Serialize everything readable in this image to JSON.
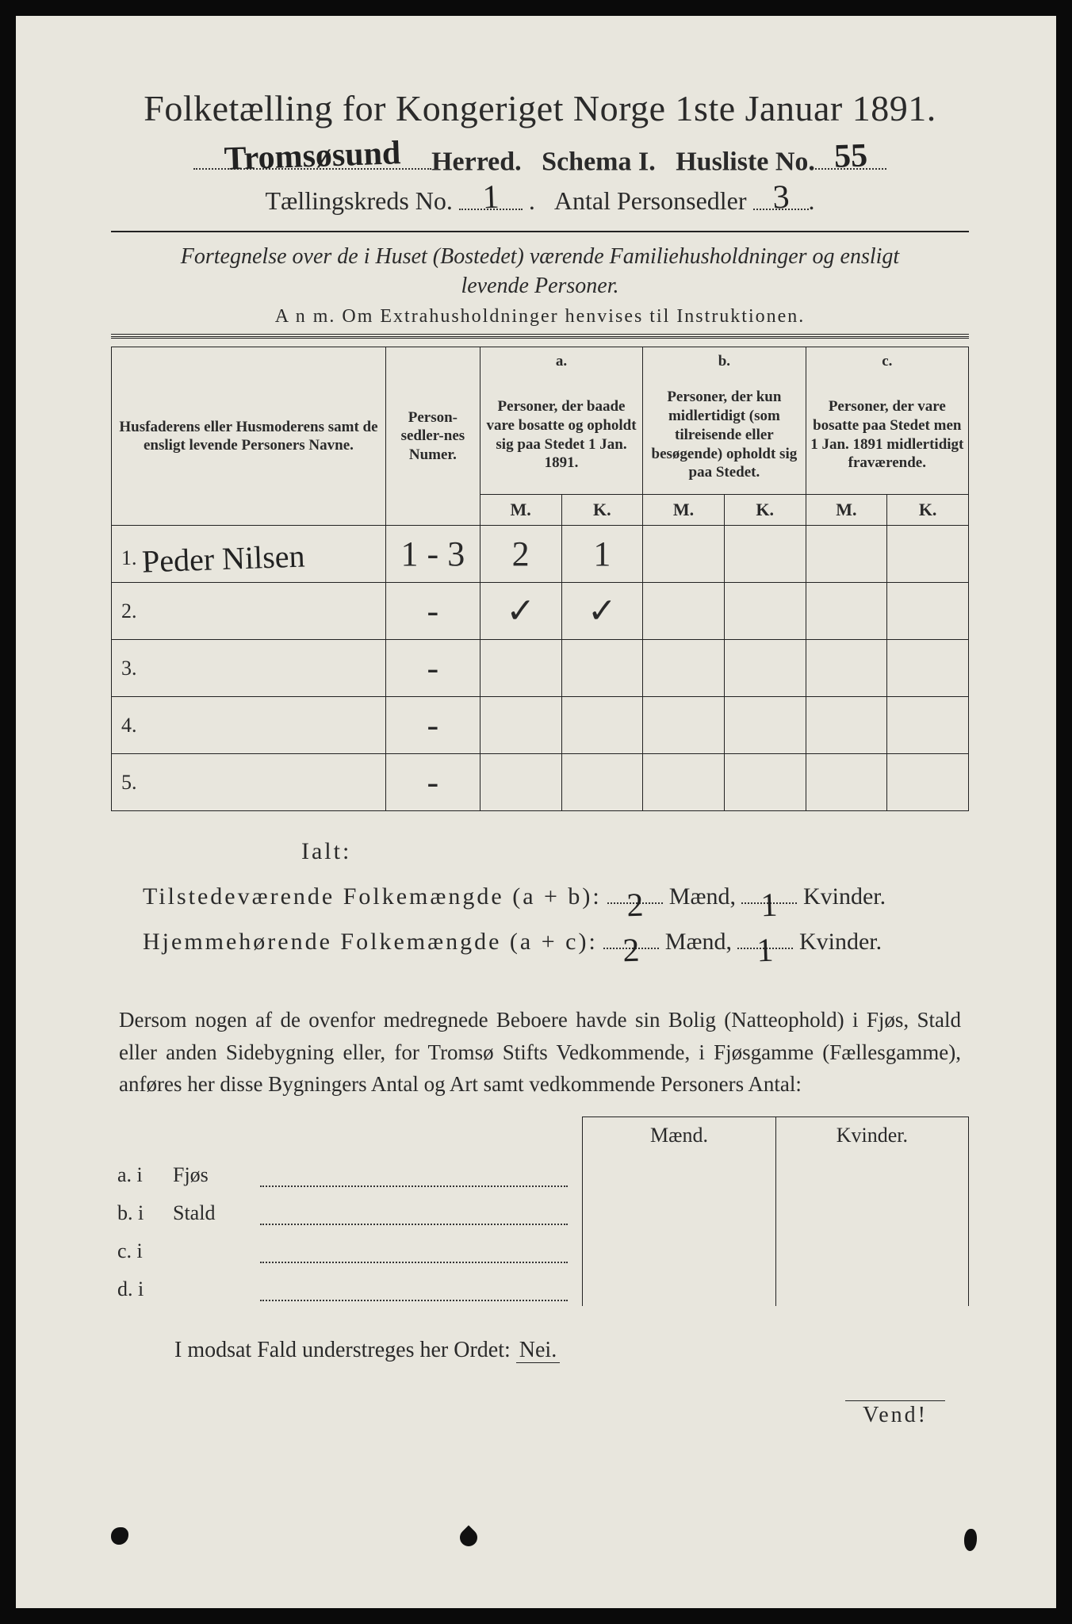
{
  "title": "Folketælling for Kongeriget Norge 1ste Januar 1891.",
  "header": {
    "herred_hw": "Tromsøsund",
    "herred_label": "Herred.",
    "schema_label": "Schema I.",
    "husliste_label": "Husliste No.",
    "husliste_hw": "55",
    "kreds_label": "Tællingskreds No.",
    "kreds_hw": "1",
    "antal_label": "Antal Personsedler",
    "antal_hw": "3"
  },
  "desc_line1": "Fortegnelse over de i Huset (Bostedet) værende Familiehusholdninger og ensligt",
  "desc_line2": "levende Personer.",
  "anm": "A n m.  Om Extrahusholdninger henvises til Instruktionen.",
  "table": {
    "col_names": "Husfaderens eller Husmoderens samt de ensligt levende Personers Navne.",
    "col_numer": "Person-sedler-nes Numer.",
    "col_a_head": "a.",
    "col_a": "Personer, der baade vare bosatte og opholdt sig paa Stedet 1 Jan. 1891.",
    "col_b_head": "b.",
    "col_b": "Personer, der kun midlertidigt (som tilreisende eller besøgende) opholdt sig paa Stedet.",
    "col_c_head": "c.",
    "col_c": "Personer, der vare bosatte paa Stedet men 1 Jan. 1891 midlertidigt fraværende.",
    "M": "M.",
    "K": "K.",
    "rows": [
      {
        "n": "1.",
        "name_hw": "Peder Nilsen",
        "numer_hw": "1 - 3",
        "aM": "2",
        "aK": "1",
        "bM": "",
        "bK": "",
        "cM": "",
        "cK": ""
      },
      {
        "n": "2.",
        "name_hw": "",
        "numer_hw": "-",
        "aM": "✓",
        "aK": "✓",
        "bM": "",
        "bK": "",
        "cM": "",
        "cK": ""
      },
      {
        "n": "3.",
        "name_hw": "",
        "numer_hw": "-",
        "aM": "",
        "aK": "",
        "bM": "",
        "bK": "",
        "cM": "",
        "cK": ""
      },
      {
        "n": "4.",
        "name_hw": "",
        "numer_hw": "-",
        "aM": "",
        "aK": "",
        "bM": "",
        "bK": "",
        "cM": "",
        "cK": ""
      },
      {
        "n": "5.",
        "name_hw": "",
        "numer_hw": "-",
        "aM": "",
        "aK": "",
        "bM": "",
        "bK": "",
        "cM": "",
        "cK": ""
      }
    ]
  },
  "totals": {
    "ialt": "Ialt:",
    "line1_a": "Tilstedeværende Folkemængde (a + b):",
    "line1_m_hw": "2",
    "maend": "Mænd,",
    "line1_k_hw": "1",
    "kvinder": "Kvinder.",
    "line2_a": "Hjemmehørende Folkemængde (a + c):",
    "line2_m_hw": "2",
    "line2_k_hw": "1"
  },
  "para": "Dersom nogen af de ovenfor medregnede Beboere havde sin Bolig (Natteophold) i Fjøs, Stald eller anden Sidebygning eller, for Tromsø Stifts Vedkommende, i Fjøsgamme (Fællesgamme), anføres her disse Bygningers Antal og Art samt vedkommende Personers Antal:",
  "fjøs": {
    "maend": "Mænd.",
    "kvinder": "Kvinder.",
    "rows": [
      {
        "l": "a.  i",
        "t": "Fjøs"
      },
      {
        "l": "b.  i",
        "t": "Stald"
      },
      {
        "l": "c.  i",
        "t": ""
      },
      {
        "l": "d.  i",
        "t": ""
      }
    ]
  },
  "nei_line": "I modsat Fald understreges her Ordet:",
  "nei": "Nei.",
  "vend": "Vend!"
}
